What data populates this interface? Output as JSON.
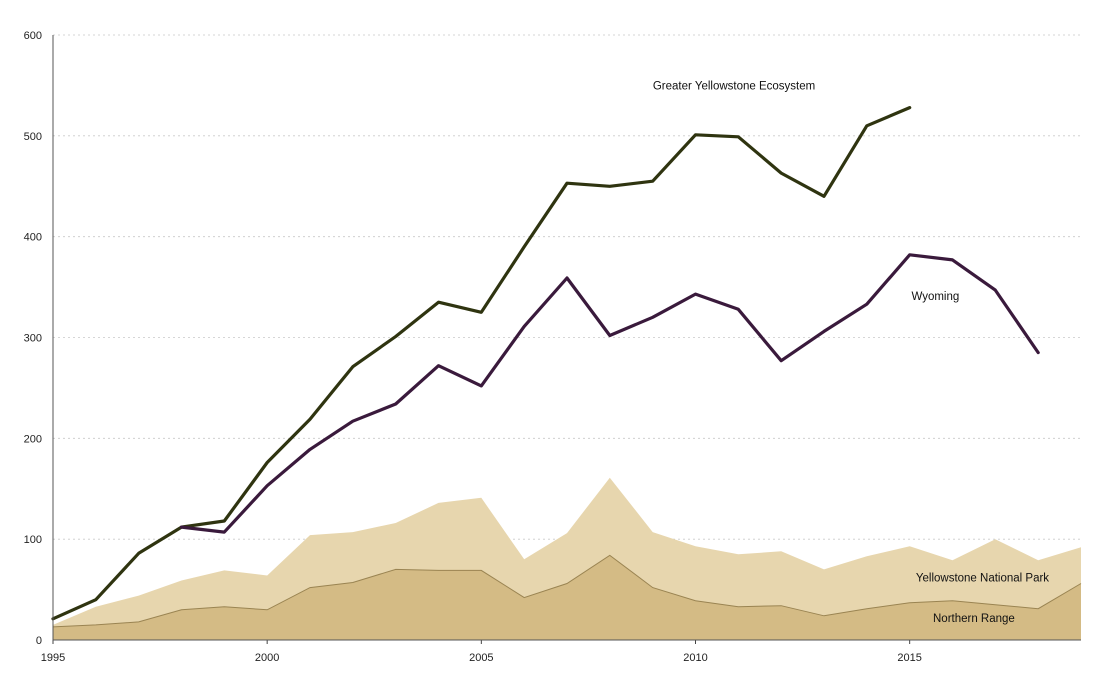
{
  "chart_data": {
    "type": "area",
    "x": [
      1995,
      1996,
      1997,
      1998,
      1999,
      2000,
      2001,
      2002,
      2003,
      2004,
      2005,
      2006,
      2007,
      2008,
      2009,
      2010,
      2011,
      2012,
      2013,
      2014,
      2015,
      2016,
      2017,
      2018,
      2019
    ],
    "xlim": [
      1995,
      2019
    ],
    "ylim": [
      0,
      600
    ],
    "yticks": [
      0,
      100,
      200,
      300,
      400,
      500,
      600
    ],
    "xticks": [
      1995,
      2000,
      2005,
      2010,
      2015
    ],
    "grid": true,
    "legend": "none",
    "series": [
      {
        "name": "Yellowstone National Park",
        "kind": "area",
        "color": "#e7d6ae",
        "values": [
          15,
          33,
          44,
          59,
          69,
          64,
          104,
          107,
          116,
          136,
          141,
          80,
          106,
          161,
          107,
          93,
          85,
          88,
          70,
          83,
          93,
          79,
          100,
          79,
          92
        ]
      },
      {
        "name": "Northern Range",
        "kind": "area",
        "color": "#d4bb85",
        "values": [
          13,
          15,
          18,
          30,
          33,
          30,
          52,
          57,
          70,
          69,
          69,
          42,
          56,
          84,
          52,
          39,
          33,
          34,
          24,
          31,
          37,
          39,
          35,
          31,
          56
        ]
      },
      {
        "name": "Greater Yellowstone Ecosystem",
        "kind": "line",
        "color": "#2f3410",
        "values": [
          21,
          40,
          86,
          112,
          118,
          176,
          219,
          271,
          301,
          335,
          325,
          390,
          453,
          450,
          455,
          501,
          499,
          463,
          440,
          510,
          528,
          null,
          null,
          null,
          null
        ]
      },
      {
        "name": "Wyoming",
        "kind": "line",
        "color": "#3a1a3c",
        "values": [
          null,
          null,
          null,
          112,
          107,
          153,
          189,
          217,
          234,
          272,
          252,
          311,
          359,
          302,
          320,
          343,
          328,
          277,
          306,
          333,
          382,
          377,
          347,
          285,
          null
        ]
      }
    ]
  }
}
